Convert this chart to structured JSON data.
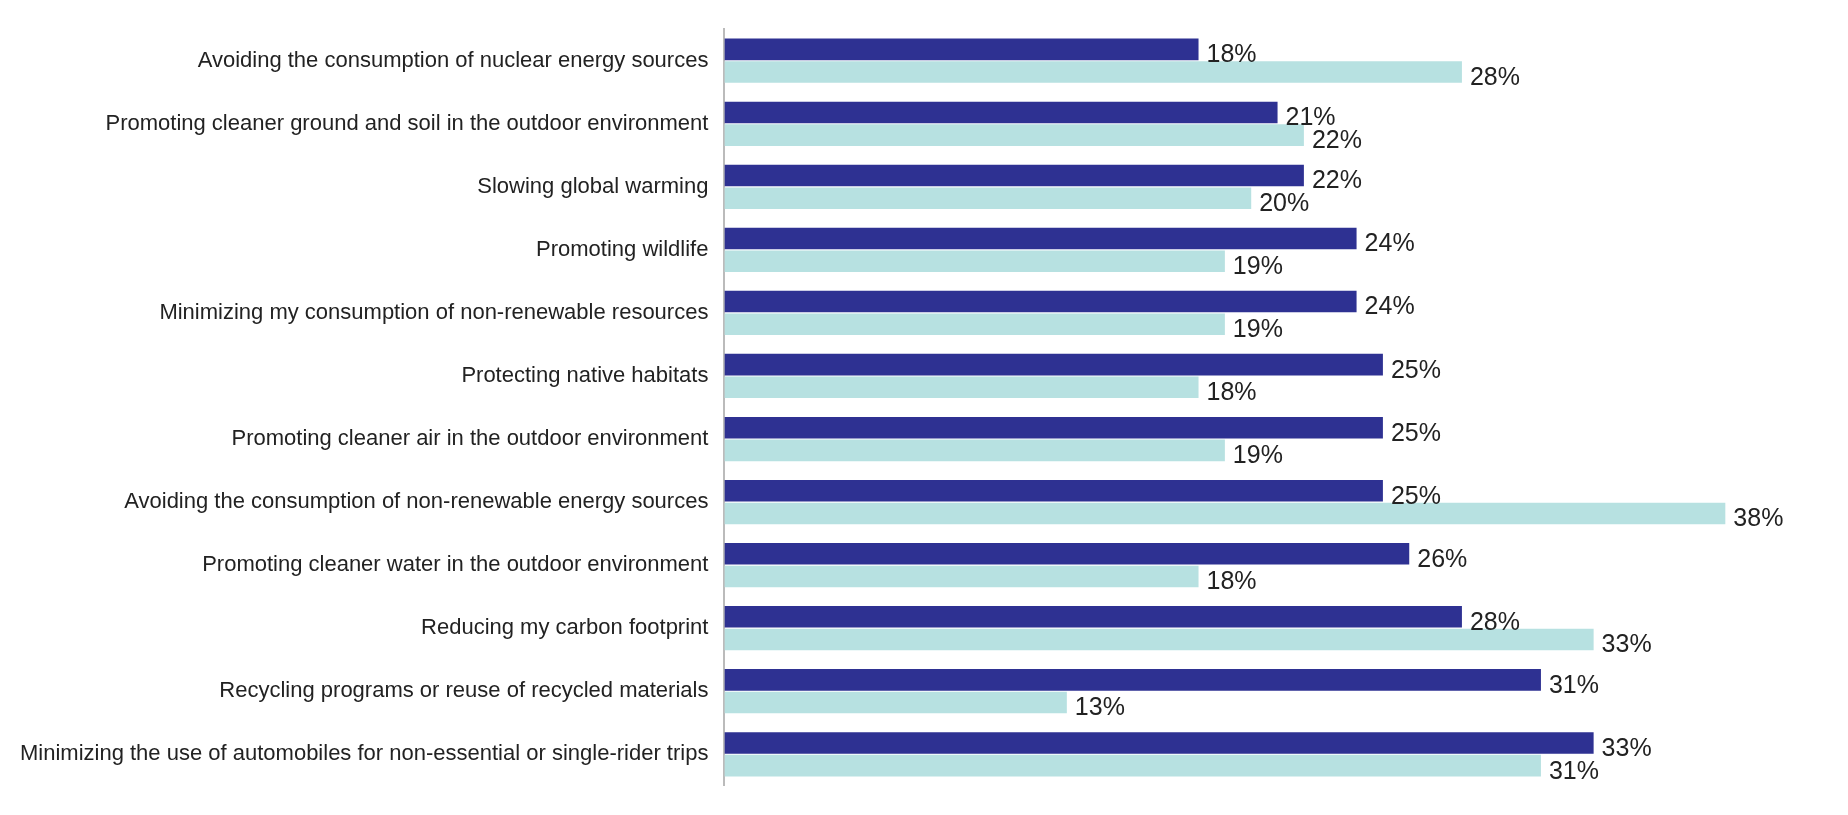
{
  "chart_data": {
    "type": "bar",
    "orientation": "horizontal",
    "categories": [
      "Avoiding the consumption of nuclear energy sources",
      "Promoting cleaner ground and soil in the outdoor environment",
      "Slowing global warming",
      "Promoting wildlife",
      "Minimizing my consumption of non-renewable resources",
      "Protecting native habitats",
      "Promoting cleaner air in the outdoor environment",
      "Avoiding the consumption of non-renewable energy sources",
      "Promoting cleaner water in the outdoor environment",
      "Reducing my carbon footprint",
      "Recycling programs or reuse of recycled materials",
      "Minimizing the use of automobiles for non-essential or single-rider trips"
    ],
    "series": [
      {
        "color": "#2e3192",
        "values": [
          18,
          21,
          22,
          24,
          24,
          25,
          25,
          25,
          26,
          28,
          31,
          33
        ],
        "value_labels": [
          "18%",
          "21%",
          "22%",
          "24%",
          "24%",
          "25%",
          "25%",
          "25%",
          "26%",
          "28%",
          "31%",
          "33%"
        ]
      },
      {
        "color": "#b7e1e1",
        "values": [
          28,
          22,
          20,
          19,
          19,
          18,
          19,
          38,
          18,
          33,
          13,
          31
        ],
        "value_labels": [
          "28%",
          "22%",
          "20%",
          "19%",
          "19%",
          "18%",
          "19%",
          "38%",
          "18%",
          "33%",
          "13%",
          "31%"
        ]
      }
    ],
    "tick_labels": "y",
    "legend": false
  }
}
